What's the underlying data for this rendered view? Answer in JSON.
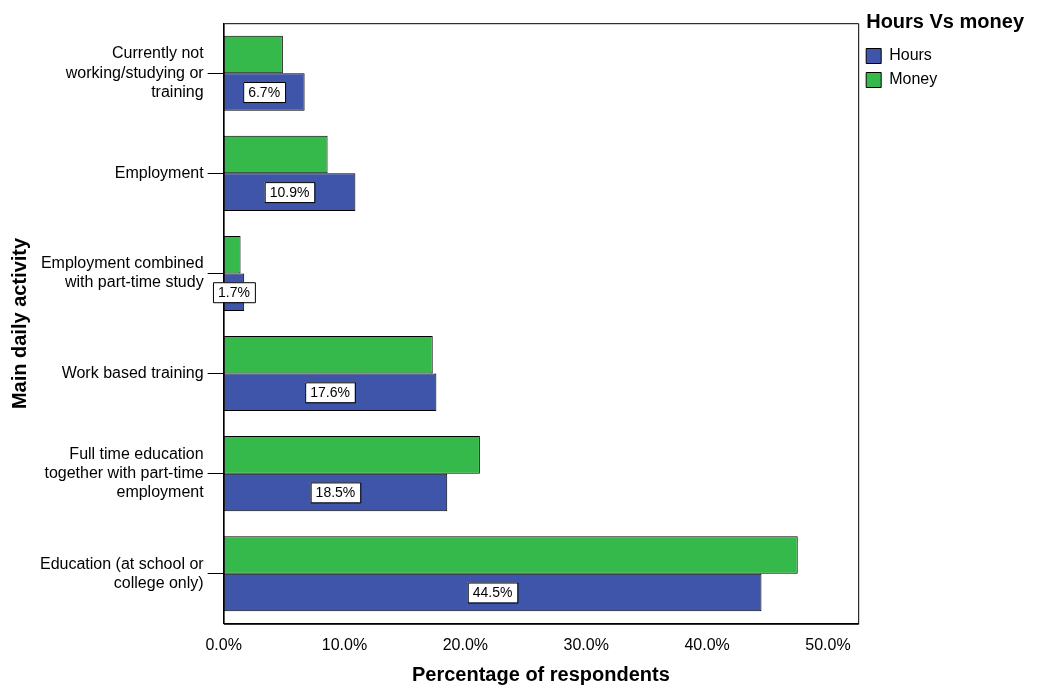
{
  "chart_data": {
    "type": "bar",
    "orientation": "horizontal",
    "xlabel": "Percentage of respondents",
    "ylabel": "Main daily activity",
    "legend_title": "Hours Vs money",
    "legend": "top right",
    "grid": false,
    "categories": [
      "Currently not working/studying or training",
      "Employment",
      "Employment combined with part-time study",
      "Work based training",
      "Full time education together with part-time employment",
      "Education (at school or college only)"
    ],
    "series": [
      {
        "name": "Hours",
        "color": "#3f55a9",
        "values": [
          6.7,
          10.9,
          1.7,
          17.6,
          18.5,
          44.5
        ],
        "value_labels": [
          "6.7%",
          "10.9%",
          "1.7%",
          "17.6%",
          "18.5%",
          "44.5%"
        ]
      },
      {
        "name": "Money",
        "color": "#35b94a",
        "values": [
          4.9,
          8.6,
          1.4,
          17.3,
          21.2,
          47.5
        ]
      }
    ],
    "xlim": [
      0,
      52.5
    ],
    "xticks": [
      {
        "value": 0,
        "label": "0.0%"
      },
      {
        "value": 10,
        "label": "10.0%"
      },
      {
        "value": 20,
        "label": "20.0%"
      },
      {
        "value": 30,
        "label": "30.0%"
      },
      {
        "value": 40,
        "label": "40.0%"
      },
      {
        "value": 50,
        "label": "50.0%"
      }
    ]
  }
}
